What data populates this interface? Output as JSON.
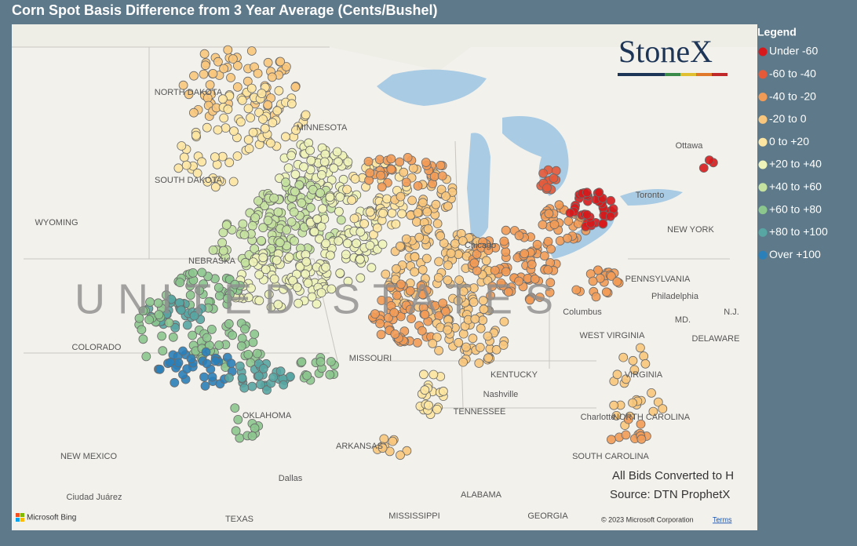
{
  "title": "Corn Spot Basis Difference from 3 Year Average (Cents/Bushel)",
  "legend": {
    "title": "Legend",
    "items": [
      {
        "name": "Under -60",
        "color": "#d7191c"
      },
      {
        "name": "-60 to -40",
        "color": "#e65a3a"
      },
      {
        "name": "-40 to -20",
        "color": "#f29b56"
      },
      {
        "name": "-20 to 0",
        "color": "#f8c67c"
      },
      {
        "name": "0 to +20",
        "color": "#fde6a1"
      },
      {
        "name": "+20 to +40",
        "color": "#eef3b9"
      },
      {
        "name": "+40 to +60",
        "color": "#c5e2a0"
      },
      {
        "name": "+60 to +80",
        "color": "#8cc78e"
      },
      {
        "name": "+80 to +100",
        "color": "#58a6a3"
      },
      {
        "name": "Over +100",
        "color": "#2b80b9"
      }
    ]
  },
  "logo": "StoneX",
  "notes": [
    "All Bids Converted to H",
    "Source: DTN ProphetX"
  ],
  "map": {
    "country_label": "UNITED STATES",
    "labels": [
      "NORTH DAKOTA",
      "MINNESOTA",
      "SOUTH DAKOTA",
      "WYOMING",
      "NEBRASKA",
      "COLORADO",
      "MISSOURI",
      "OKLAHOMA",
      "NEW MEXICO",
      "TEXAS",
      "ARKANSAS",
      "MISSISSIPPI",
      "ALABAMA",
      "GEORGIA",
      "TENNESSEE",
      "KENTUCKY",
      "WEST VIRGINIA",
      "VIRGINIA",
      "NORTH CAROLINA",
      "SOUTH CAROLINA",
      "PENNSYLVANIA",
      "NEW YORK",
      "DELAWARE",
      "MD.",
      "N.J.",
      "Ottawa",
      "Toronto",
      "Chicago",
      "Columbus",
      "Nashville",
      "Charlotte",
      "Philadelphia",
      "Dallas",
      "Ciudad Juárez"
    ],
    "provider": "Microsoft Bing",
    "copyright": "© 2023 Microsoft Corporation",
    "terms": "Terms"
  }
}
